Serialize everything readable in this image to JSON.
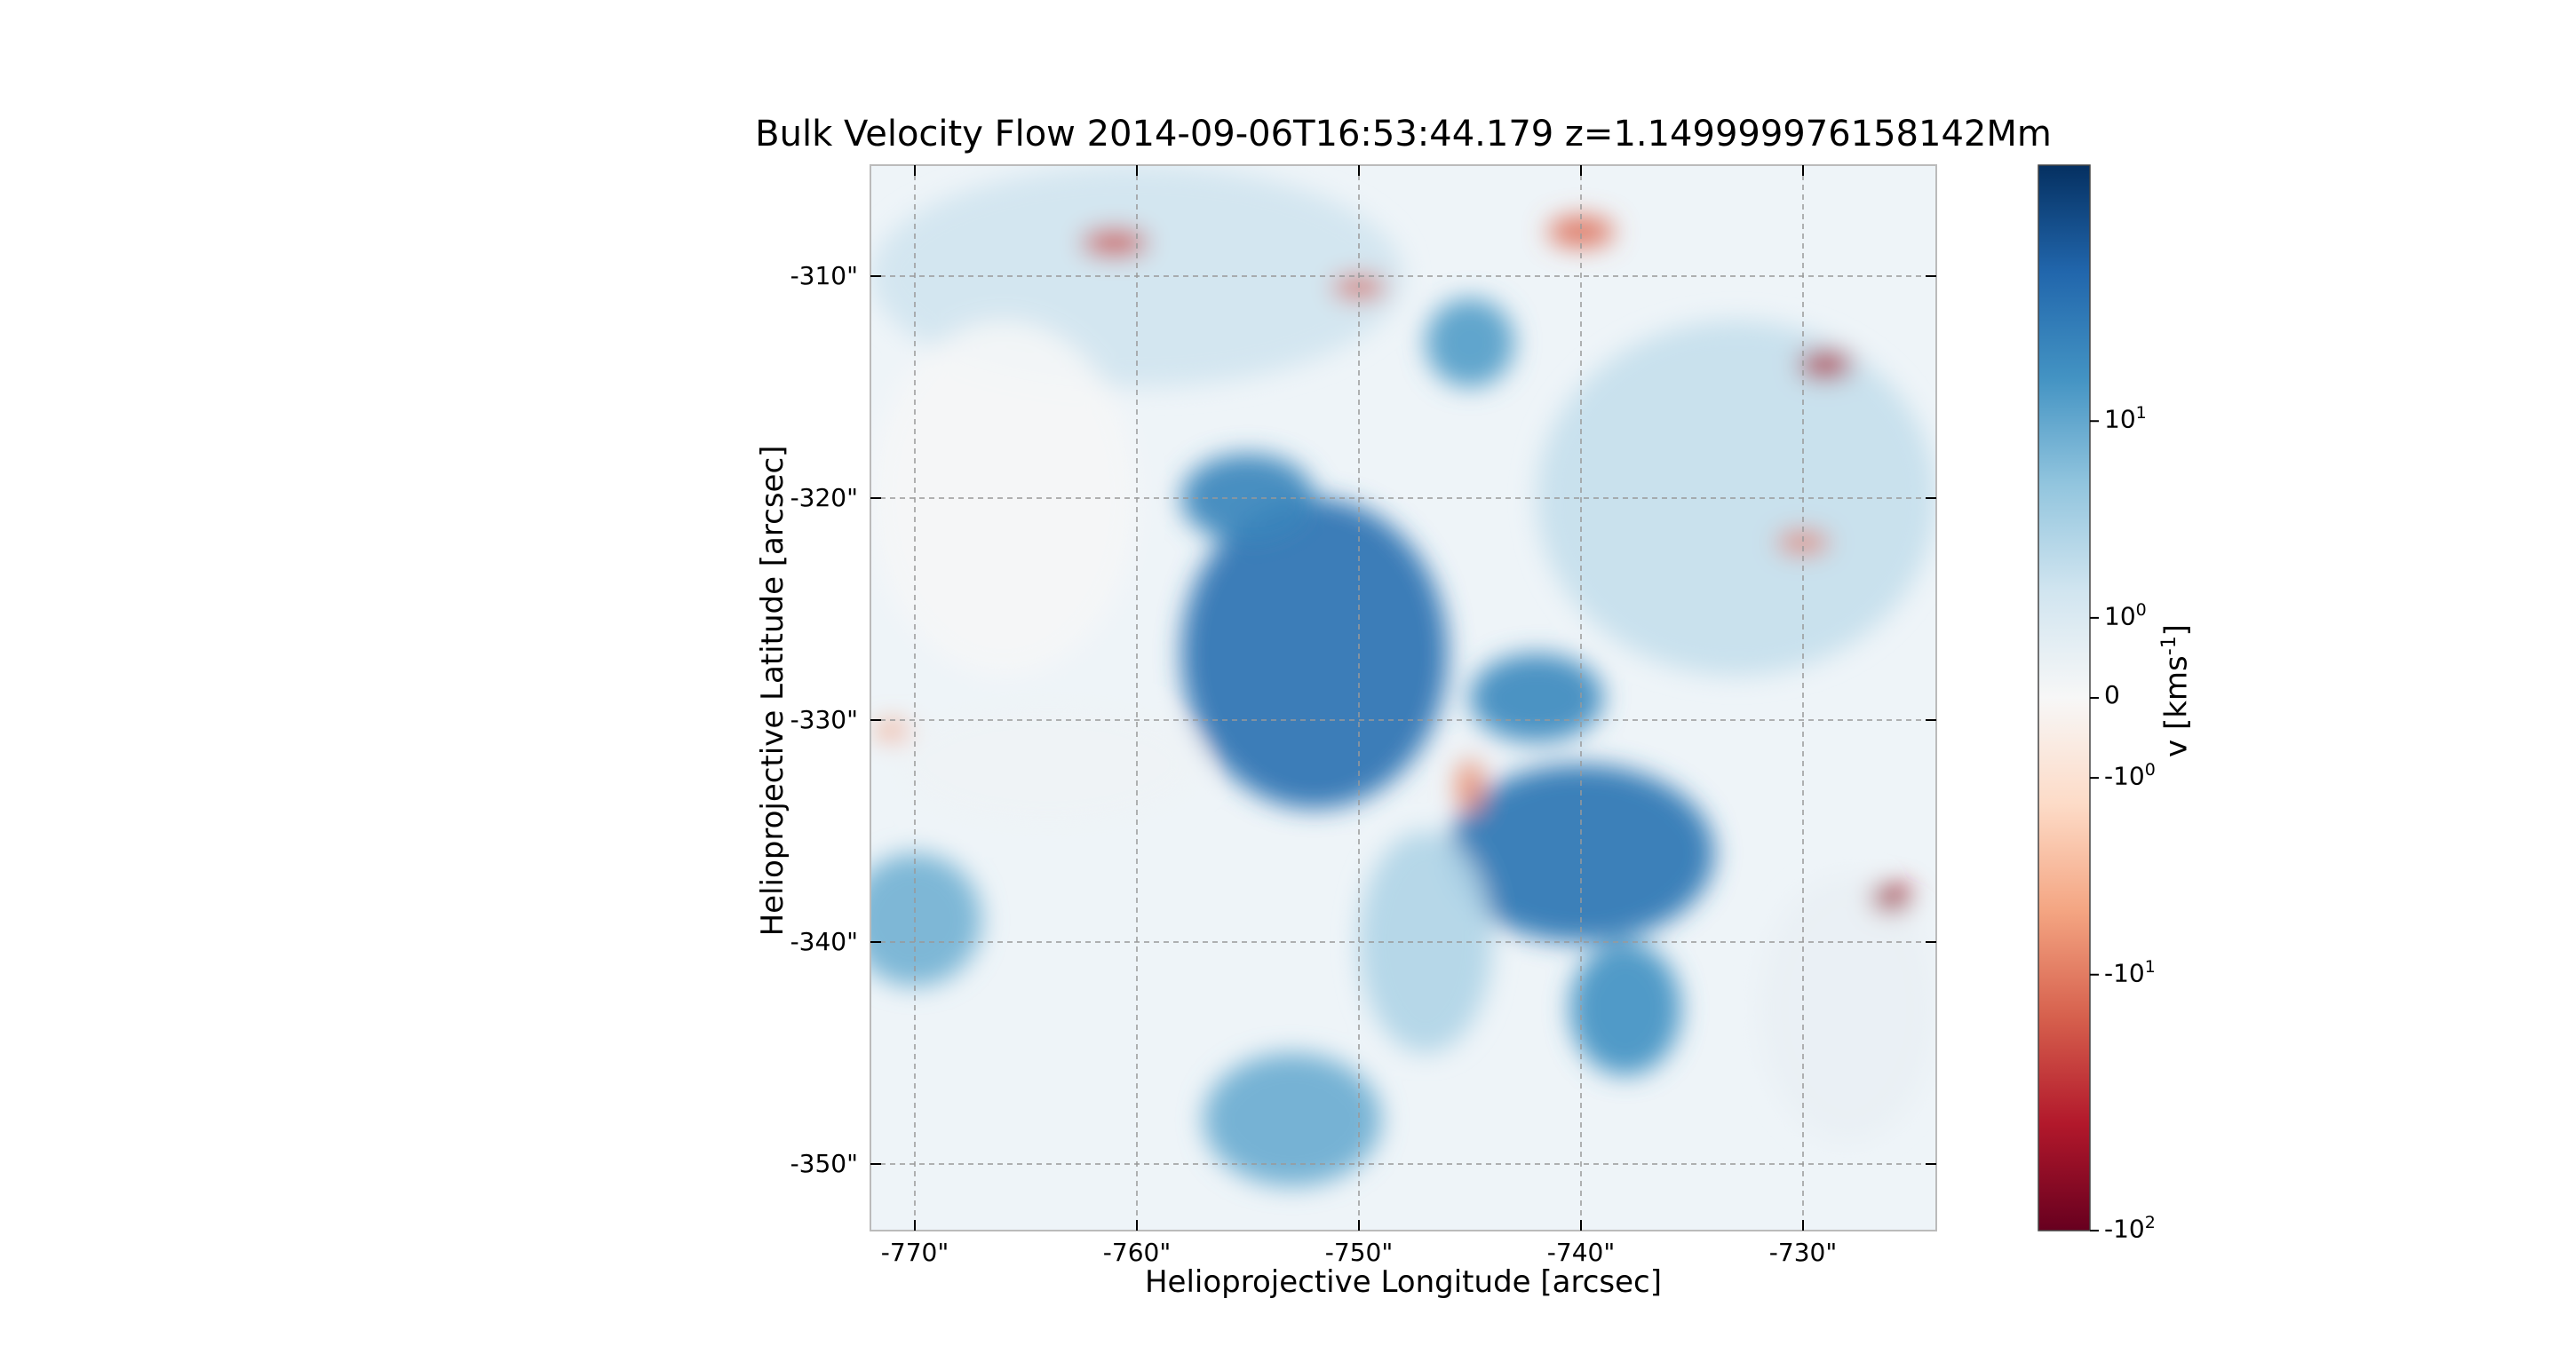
{
  "chart_data": {
    "type": "heatmap",
    "title": "Bulk Velocity Flow 2014-09-06T16:53:44.179 z=1.149999976158142Mm",
    "xlabel": "Helioprojective Longitude [arcsec]",
    "ylabel": "Helioprojective Latitude [arcsec]",
    "xlim": [
      -772,
      -724
    ],
    "ylim": [
      -353,
      -305
    ],
    "x_ticks": [
      "-770\"",
      "-760\"",
      "-750\"",
      "-740\"",
      "-730\""
    ],
    "x_tick_values": [
      -770,
      -760,
      -750,
      -740,
      -730
    ],
    "y_ticks": [
      "-310\"",
      "-320\"",
      "-330\"",
      "-340\"",
      "-350\""
    ],
    "y_tick_values": [
      -310,
      -320,
      -330,
      -340,
      -350
    ],
    "grid": true,
    "colorbar": {
      "label": "v [kms",
      "label_exponent": "-1",
      "label_suffix": "]",
      "scale": "symlog",
      "range": [
        -100,
        100
      ],
      "ticks": [
        {
          "value": 10,
          "base": "10",
          "exp": "1"
        },
        {
          "value": 1,
          "base": "10",
          "exp": "0"
        },
        {
          "value": 0,
          "base": "0",
          "exp": ""
        },
        {
          "value": -1,
          "base": "-10",
          "exp": "0"
        },
        {
          "value": -10,
          "base": "-10",
          "exp": "1"
        },
        {
          "value": -100,
          "base": "-10",
          "exp": "2"
        }
      ],
      "colormap": "RdBu",
      "colors": [
        "#67001f",
        "#b2182b",
        "#d6604d",
        "#f4a582",
        "#fddbc7",
        "#f7f7f7",
        "#d1e5f0",
        "#92c5de",
        "#4393c3",
        "#2166ac",
        "#053061"
      ]
    },
    "regions": [
      {
        "x": -752,
        "y": -327,
        "rx": 6,
        "ry": 7,
        "v": 30
      },
      {
        "x": -740,
        "y": -336,
        "rx": 6,
        "ry": 4,
        "v": 28
      },
      {
        "x": -755,
        "y": -320,
        "rx": 3,
        "ry": 2,
        "v": 20
      },
      {
        "x": -742,
        "y": -329,
        "rx": 3,
        "ry": 2,
        "v": 18
      },
      {
        "x": -738,
        "y": -343,
        "rx": 2.5,
        "ry": 3,
        "v": 15
      },
      {
        "x": -770,
        "y": -339,
        "rx": 3,
        "ry": 3,
        "v": 8
      },
      {
        "x": -753,
        "y": -348,
        "rx": 4,
        "ry": 3,
        "v": 9
      },
      {
        "x": -745,
        "y": -313,
        "rx": 2,
        "ry": 2,
        "v": 12
      },
      {
        "x": -747,
        "y": -340,
        "rx": 3,
        "ry": 5,
        "v": 3
      },
      {
        "x": -733,
        "y": -320,
        "rx": 9,
        "ry": 8,
        "v": 2
      },
      {
        "x": -760,
        "y": -310,
        "rx": 12,
        "ry": 5,
        "v": 1.5
      },
      {
        "x": -766,
        "y": -320,
        "rx": 6,
        "ry": 8,
        "v": 0.05
      },
      {
        "x": -764,
        "y": -332,
        "rx": 7,
        "ry": 3,
        "v": 0.2
      },
      {
        "x": -728,
        "y": -343,
        "rx": 4,
        "ry": 6,
        "v": 0.4
      },
      {
        "x": -761,
        "y": -308.5,
        "rx": 1.5,
        "ry": 0.6,
        "v": -20
      },
      {
        "x": -750,
        "y": -310.5,
        "rx": 1.2,
        "ry": 0.5,
        "v": -15
      },
      {
        "x": -740,
        "y": -308,
        "rx": 1.5,
        "ry": 0.7,
        "v": -12
      },
      {
        "x": -729,
        "y": -314,
        "rx": 1.2,
        "ry": 0.6,
        "v": -40
      },
      {
        "x": -726,
        "y": -338,
        "rx": 0.9,
        "ry": 0.6,
        "v": -50
      },
      {
        "x": -730,
        "y": -322,
        "rx": 1.2,
        "ry": 0.5,
        "v": -10
      },
      {
        "x": -745,
        "y": -333,
        "rx": 0.6,
        "ry": 1.2,
        "v": -8
      },
      {
        "x": -771,
        "y": -330.5,
        "rx": 0.8,
        "ry": 0.4,
        "v": -6
      }
    ]
  }
}
